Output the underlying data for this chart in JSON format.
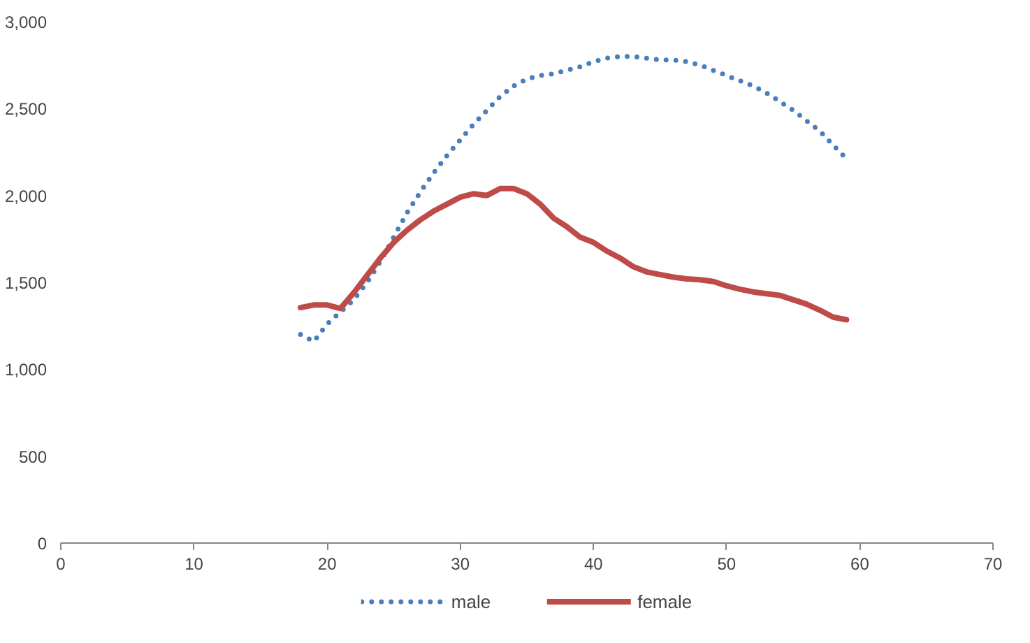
{
  "chart_data": {
    "type": "line",
    "x": [
      18,
      19,
      20,
      21,
      22,
      23,
      24,
      25,
      26,
      27,
      28,
      29,
      30,
      31,
      32,
      33,
      34,
      35,
      36,
      37,
      38,
      39,
      40,
      41,
      42,
      43,
      44,
      45,
      46,
      47,
      48,
      49,
      50,
      51,
      52,
      53,
      54,
      55,
      56,
      57,
      58,
      59
    ],
    "series": [
      {
        "name": "male",
        "color": "#4a7ebb",
        "line_style": "dotted",
        "values": [
          1200,
          1160,
          1260,
          1330,
          1400,
          1500,
          1620,
          1760,
          1900,
          2020,
          2130,
          2230,
          2320,
          2410,
          2490,
          2570,
          2630,
          2670,
          2690,
          2700,
          2720,
          2740,
          2770,
          2790,
          2800,
          2800,
          2790,
          2780,
          2780,
          2770,
          2750,
          2720,
          2690,
          2660,
          2630,
          2590,
          2540,
          2490,
          2430,
          2370,
          2290,
          2210
        ]
      },
      {
        "name": "female",
        "color": "#be4b48",
        "line_style": "solid",
        "values": [
          1355,
          1370,
          1370,
          1350,
          1440,
          1540,
          1640,
          1730,
          1800,
          1860,
          1910,
          1950,
          1990,
          2010,
          2000,
          2040,
          2040,
          2010,
          1950,
          1870,
          1820,
          1760,
          1730,
          1680,
          1640,
          1590,
          1560,
          1545,
          1530,
          1520,
          1515,
          1505,
          1480,
          1460,
          1445,
          1435,
          1425,
          1400,
          1375,
          1340,
          1300,
          1285
        ]
      }
    ],
    "xlim": [
      0,
      70
    ],
    "xticks": [
      0,
      10,
      20,
      30,
      40,
      50,
      60,
      70
    ],
    "ylim": [
      0,
      3000
    ],
    "yticks": [
      0,
      {
        "value": 500,
        "label": "500"
      },
      {
        "value": 1000,
        "label": "1,000"
      },
      {
        "value": 1500,
        "label": "1,500"
      },
      {
        "value": 2000,
        "label": "2,000"
      },
      {
        "value": 2500,
        "label": "2,500"
      },
      {
        "value": 3000,
        "label": "3,000"
      }
    ],
    "grid": false,
    "legend": "bottom"
  }
}
